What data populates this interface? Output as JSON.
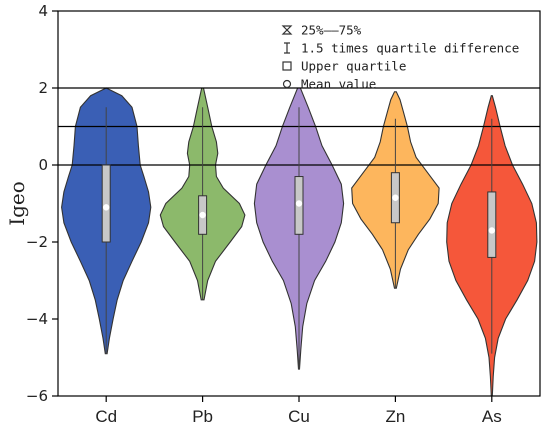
{
  "chart_data": {
    "type": "violin",
    "title": "",
    "xlabel": "",
    "ylabel": "Igeo",
    "ylim": [
      -6,
      4
    ],
    "yticks": [
      -6,
      -4,
      -2,
      0,
      2,
      4
    ],
    "ytick_labels": [
      "−6",
      "−4",
      "−2",
      "0",
      "2",
      "4"
    ],
    "reference_lines": [
      0,
      1,
      2
    ],
    "categories": [
      "Cd",
      "Pb",
      "Cu",
      "Zn",
      "As"
    ],
    "series": [
      {
        "category": "Cd",
        "color": "#3a5fb5",
        "min": -4.9,
        "q1": -2.0,
        "median": -1.1,
        "mean": -1.1,
        "q3": 0.0,
        "max": 2.0,
        "whisker_low": -4.9,
        "whisker_high": 1.5,
        "profile": [
          [
            -4.9,
            0.02
          ],
          [
            -4.5,
            0.07
          ],
          [
            -4.0,
            0.15
          ],
          [
            -3.5,
            0.24
          ],
          [
            -3.0,
            0.37
          ],
          [
            -2.5,
            0.56
          ],
          [
            -2.0,
            0.76
          ],
          [
            -1.5,
            0.92
          ],
          [
            -1.1,
            0.97
          ],
          [
            -0.7,
            0.92
          ],
          [
            -0.3,
            0.82
          ],
          [
            0.0,
            0.74
          ],
          [
            0.5,
            0.7
          ],
          [
            1.0,
            0.67
          ],
          [
            1.5,
            0.56
          ],
          [
            1.8,
            0.34
          ],
          [
            2.0,
            0.0
          ]
        ]
      },
      {
        "category": "Pb",
        "color": "#8cb96b",
        "min": -3.5,
        "q1": -1.8,
        "median": -1.3,
        "mean": -1.3,
        "q3": -0.8,
        "max": 2.0,
        "whisker_low": -3.5,
        "whisker_high": 1.5,
        "profile": [
          [
            -3.5,
            0.03
          ],
          [
            -3.0,
            0.11
          ],
          [
            -2.5,
            0.28
          ],
          [
            -2.0,
            0.6
          ],
          [
            -1.6,
            0.85
          ],
          [
            -1.3,
            0.92
          ],
          [
            -1.0,
            0.8
          ],
          [
            -0.6,
            0.45
          ],
          [
            -0.3,
            0.3
          ],
          [
            0.0,
            0.28
          ],
          [
            0.3,
            0.33
          ],
          [
            0.6,
            0.3
          ],
          [
            1.0,
            0.2
          ],
          [
            1.5,
            0.11
          ],
          [
            2.0,
            0.02
          ]
        ]
      },
      {
        "category": "Cu",
        "color": "#a98fd0",
        "min": -5.3,
        "q1": -1.8,
        "median": -1.0,
        "mean": -1.0,
        "q3": -0.3,
        "max": 2.0,
        "whisker_low": -5.3,
        "whisker_high": 1.5,
        "profile": [
          [
            -5.3,
            0.01
          ],
          [
            -4.8,
            0.04
          ],
          [
            -4.2,
            0.08
          ],
          [
            -3.6,
            0.17
          ],
          [
            -3.0,
            0.34
          ],
          [
            -2.5,
            0.58
          ],
          [
            -2.0,
            0.78
          ],
          [
            -1.5,
            0.92
          ],
          [
            -1.0,
            0.97
          ],
          [
            -0.5,
            0.92
          ],
          [
            0.0,
            0.72
          ],
          [
            0.5,
            0.5
          ],
          [
            1.0,
            0.36
          ],
          [
            1.5,
            0.2
          ],
          [
            2.0,
            0.03
          ]
        ]
      },
      {
        "category": "Zn",
        "color": "#fdb65d",
        "min": -3.2,
        "q1": -1.5,
        "median": -0.85,
        "mean": -0.85,
        "q3": -0.2,
        "max": 1.9,
        "whisker_low": -3.2,
        "whisker_high": 1.2,
        "profile": [
          [
            -3.2,
            0.02
          ],
          [
            -2.7,
            0.11
          ],
          [
            -2.2,
            0.28
          ],
          [
            -1.8,
            0.5
          ],
          [
            -1.4,
            0.75
          ],
          [
            -1.0,
            0.93
          ],
          [
            -0.6,
            0.95
          ],
          [
            -0.2,
            0.7
          ],
          [
            0.2,
            0.45
          ],
          [
            0.6,
            0.33
          ],
          [
            1.0,
            0.26
          ],
          [
            1.4,
            0.17
          ],
          [
            1.7,
            0.1
          ],
          [
            1.9,
            0.02
          ]
        ]
      },
      {
        "category": "As",
        "color": "#f5573a",
        "min": -6.0,
        "q1": -2.4,
        "median": -1.7,
        "mean": -1.7,
        "q3": -0.7,
        "max": 1.8,
        "whisker_low": -4.9,
        "whisker_high": 1.2,
        "profile": [
          [
            -6.0,
            0.01
          ],
          [
            -5.5,
            0.03
          ],
          [
            -5.0,
            0.06
          ],
          [
            -4.5,
            0.14
          ],
          [
            -4.0,
            0.3
          ],
          [
            -3.5,
            0.55
          ],
          [
            -3.0,
            0.78
          ],
          [
            -2.5,
            0.93
          ],
          [
            -2.0,
            0.98
          ],
          [
            -1.5,
            0.97
          ],
          [
            -1.0,
            0.87
          ],
          [
            -0.5,
            0.67
          ],
          [
            0.0,
            0.45
          ],
          [
            0.5,
            0.29
          ],
          [
            1.0,
            0.18
          ],
          [
            1.5,
            0.08
          ],
          [
            1.8,
            0.01
          ]
        ]
      }
    ],
    "legend": {
      "placement": "top-right",
      "items": [
        {
          "marker": "box-range",
          "label": "25%——75%"
        },
        {
          "marker": "whisker",
          "label": "1.5 times quartile difference"
        },
        {
          "marker": "square",
          "label": "Upper quartile"
        },
        {
          "marker": "circle",
          "label": "Mean value"
        }
      ]
    }
  }
}
